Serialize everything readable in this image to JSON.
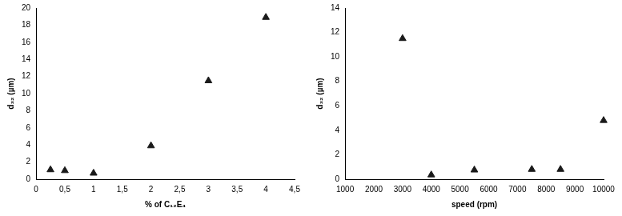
{
  "chart_data": [
    {
      "type": "scatter",
      "x_label": "% of C₁₂E₄",
      "y_label": "d₃₂ (µm)",
      "series": [
        {
          "name": "d₃₂",
          "color": "#1a1a1a",
          "marker": "triangle",
          "x": [
            0.25,
            0.5,
            1,
            2,
            3,
            4
          ],
          "values": [
            1.1,
            1.0,
            0.7,
            3.9,
            11.5,
            18.9
          ]
        }
      ],
      "xlim": [
        0,
        4.5
      ],
      "xticks": [
        0,
        {
          "value": 0.5,
          "label": "0,5"
        },
        1,
        {
          "value": 1.5,
          "label": "1,5"
        },
        2,
        {
          "value": 2.5,
          "label": "2,5"
        },
        3,
        {
          "value": 3.5,
          "label": "3,5"
        },
        4,
        {
          "value": 4.5,
          "label": "4,5"
        }
      ],
      "ylim": [
        0,
        20
      ],
      "yticks": [
        0,
        2,
        4,
        6,
        8,
        10,
        12,
        14,
        16,
        18,
        20
      ],
      "grid": false
    },
    {
      "type": "scatter",
      "x_label": "speed (rpm)",
      "y_label": "d₃₂ (µm)",
      "series": [
        {
          "name": "d₃₂",
          "color": "#1a1a1a",
          "marker": "triangle",
          "x": [
            3000,
            4000,
            5500,
            7500,
            8500,
            10000
          ],
          "values": [
            11.5,
            0.35,
            0.75,
            0.8,
            0.8,
            4.8
          ]
        }
      ],
      "xlim": [
        1000,
        10000
      ],
      "xticks": [
        1000,
        2000,
        3000,
        4000,
        5000,
        6000,
        7000,
        8000,
        9000,
        10000
      ],
      "ylim": [
        0,
        14
      ],
      "yticks": [
        0,
        2,
        4,
        6,
        8,
        10,
        12,
        14
      ],
      "grid": false
    }
  ]
}
